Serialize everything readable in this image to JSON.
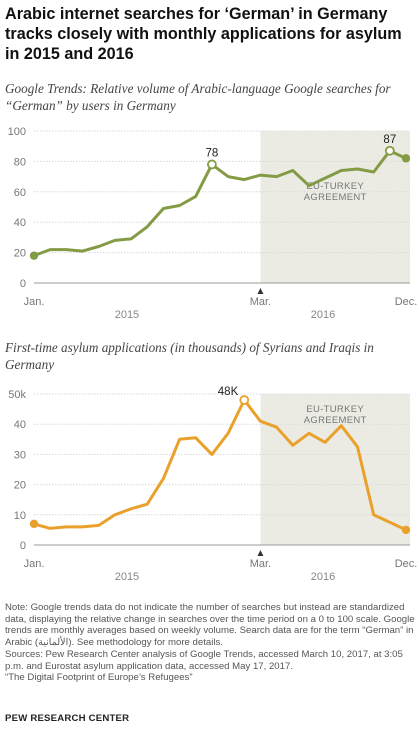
{
  "title": "Arabic internet searches for ‘German’ in Germany tracks closely with monthly applications for asylum in 2015 and 2016",
  "colors": {
    "chart1_line": "#849b45",
    "chart2_line": "#eaa12b",
    "shade": "#ebebe4",
    "grid": "#d9d9d9",
    "axis": "#999999"
  },
  "chart_data": [
    {
      "type": "line",
      "subtitle": "Google Trends: Relative volume of Arabic-language Google searches for “German” by users in Germany",
      "x": [
        "2015-01",
        "2015-02",
        "2015-03",
        "2015-04",
        "2015-05",
        "2015-06",
        "2015-07",
        "2015-08",
        "2015-09",
        "2015-10",
        "2015-11",
        "2015-12",
        "2016-01",
        "2016-02",
        "2016-03",
        "2016-04",
        "2016-05",
        "2016-06",
        "2016-07",
        "2016-08",
        "2016-09",
        "2016-10",
        "2016-11",
        "2016-12"
      ],
      "series": [
        {
          "values": [
            18,
            22,
            22,
            21,
            24,
            28,
            29,
            37,
            49,
            51,
            57,
            78,
            70,
            68,
            71,
            70,
            74,
            64,
            69,
            74,
            75,
            73,
            87,
            82
          ]
        }
      ],
      "ylim": [
        0,
        100
      ],
      "yticks": [
        "0",
        "20",
        "40",
        "60",
        "80",
        "100"
      ],
      "xtick_labels": [
        "Jan.",
        "Mar.",
        "Dec."
      ],
      "period_labels": [
        "2015",
        "2016"
      ],
      "shaded_region": {
        "from": "2016-03",
        "to": "2016-12",
        "label_lines": [
          "EU-TURKEY",
          "AGREEMENT"
        ]
      },
      "annotations": [
        {
          "x": "2015-12",
          "text": "78"
        },
        {
          "x": "2016-11",
          "text": "87"
        }
      ],
      "markers": [
        "2015-01",
        "2015-12",
        "2016-11",
        "2016-12"
      ],
      "grid": true
    },
    {
      "type": "line",
      "subtitle": "First-time asylum applications (in thousands) of Syrians and Iraqis in Germany",
      "x": [
        "2015-01",
        "2015-02",
        "2015-03",
        "2015-04",
        "2015-05",
        "2015-06",
        "2015-07",
        "2015-08",
        "2015-09",
        "2015-10",
        "2015-11",
        "2015-12",
        "2016-01",
        "2016-02",
        "2016-03",
        "2016-04",
        "2016-05",
        "2016-06",
        "2016-07",
        "2016-08",
        "2016-09",
        "2016-10",
        "2016-11",
        "2016-12"
      ],
      "series": [
        {
          "values": [
            7,
            5.5,
            6,
            6,
            6.5,
            10,
            12,
            13.5,
            22,
            35,
            35.5,
            30,
            37,
            48,
            41,
            39,
            33,
            37,
            34,
            39.5,
            32.5,
            10,
            7.5,
            5
          ]
        }
      ],
      "ylim": [
        0,
        50
      ],
      "yticks": [
        "0",
        "10",
        "20",
        "30",
        "40",
        "50k"
      ],
      "xtick_labels": [
        "Jan.",
        "Mar.",
        "Dec."
      ],
      "period_labels": [
        "2015",
        "2016"
      ],
      "shaded_region": {
        "from": "2016-03",
        "to": "2016-12",
        "label_lines": [
          "EU-TURKEY",
          "AGREEMENT"
        ]
      },
      "annotations": [
        {
          "x": "2016-02",
          "text": "48K"
        }
      ],
      "markers": [
        "2015-01",
        "2016-02",
        "2016-12"
      ],
      "grid": true
    }
  ],
  "footer": {
    "note": "Note: Google trends data do not indicate the number of searches but instead are standardized data, displaying the relative change in searches over the time period on a 0 to 100 scale. Google trends are monthly averages based on weekly volume. Search data are for the term “German” in Arabic (الألمانية). See methodology for more details.",
    "sources_1": "Sources: Pew Research Center analysis of Google Trends, accessed March 10, 2017, at 3:05 p.m. and Eurostat asylum application data, accessed May 17, 2017.",
    "sources_2": "“The Digital Footprint of Europe’s Refugees”",
    "org": "PEW RESEARCH CENTER"
  }
}
